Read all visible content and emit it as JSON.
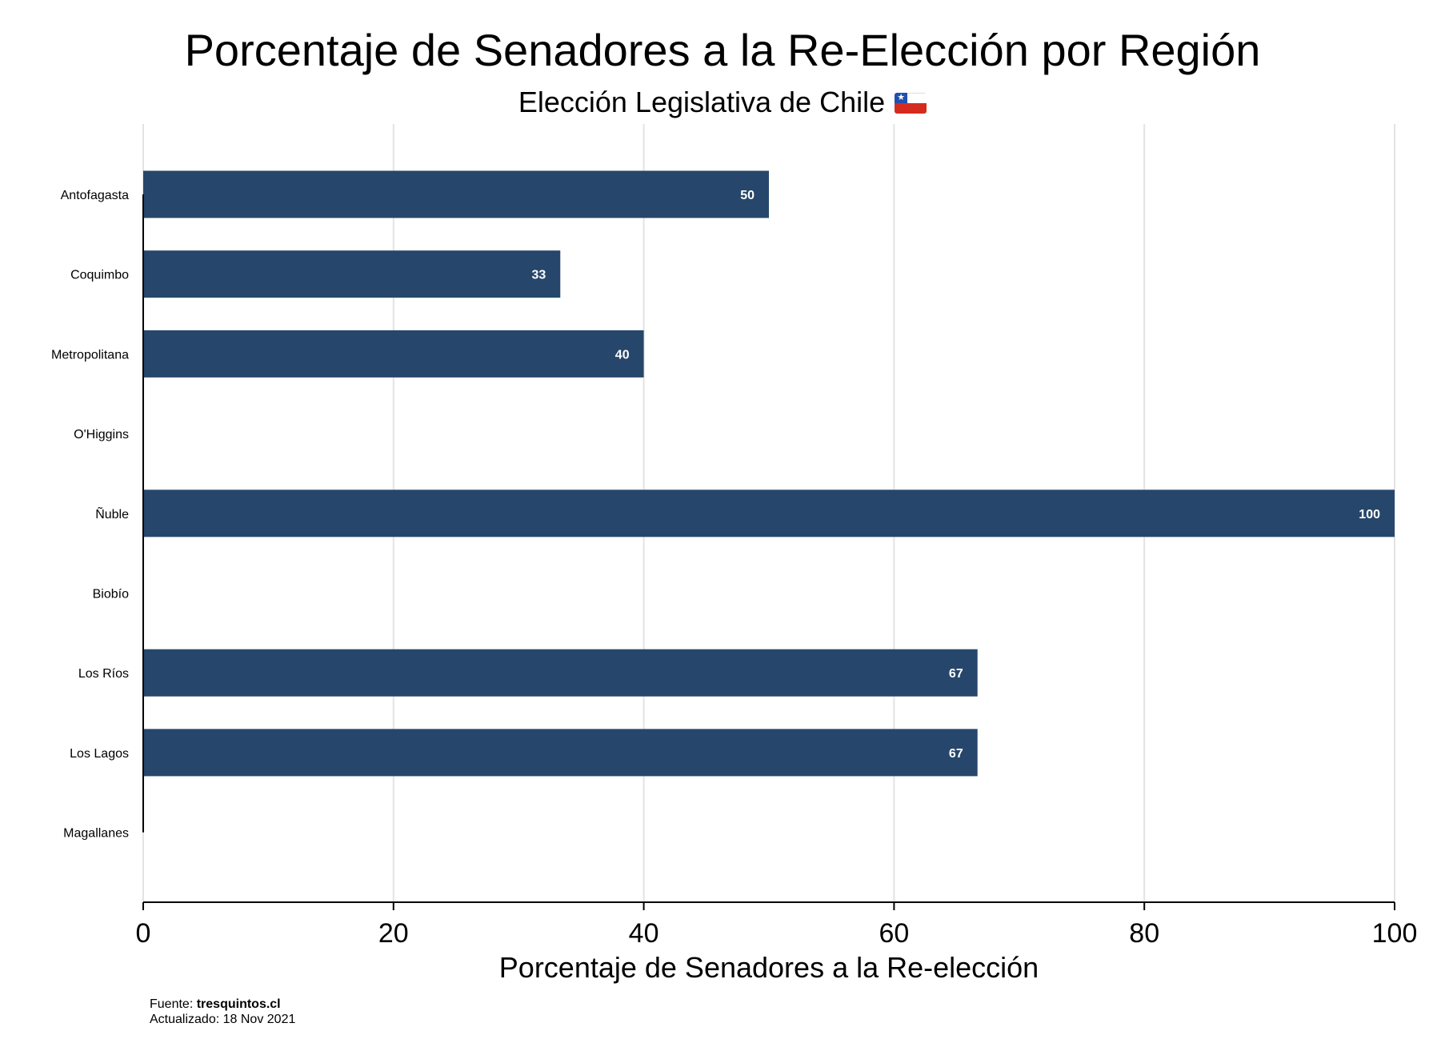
{
  "chart_data": {
    "type": "bar",
    "orientation": "horizontal",
    "title": "Porcentaje de Senadores a la Re-Elección por Región",
    "subtitle": "Elección Legislativa de Chile",
    "xlabel": "Porcentaje de Senadores a la Re-elección",
    "ylabel": "",
    "categories": [
      "Antofagasta",
      "Coquimbo",
      "Metropolitana",
      "O'Higgins",
      "Ñuble",
      "Biobío",
      "Los Ríos",
      "Los Lagos",
      "Magallanes"
    ],
    "values": [
      50,
      33.33,
      40,
      null,
      100,
      null,
      66.67,
      66.67,
      null
    ],
    "data_labels": [
      "50",
      "33",
      "40",
      "",
      "100",
      "",
      "67",
      "67",
      ""
    ],
    "xlim": [
      0,
      100
    ],
    "xticks": [
      "0",
      "20",
      "40",
      "60",
      "80",
      "100"
    ],
    "grid": "vertical",
    "legend": "none",
    "bar_color": "#26476b"
  },
  "subtitle_icon": "chile-flag-icon",
  "flag_colors": {
    "blue": "#1f4fb0",
    "red": "#d52b1e",
    "white": "#ffffff"
  },
  "footer": {
    "source_label": "Fuente:",
    "source_value": "tresquintos.cl",
    "updated_label": "Actualizado:",
    "updated_value": "18 Nov 2021"
  }
}
